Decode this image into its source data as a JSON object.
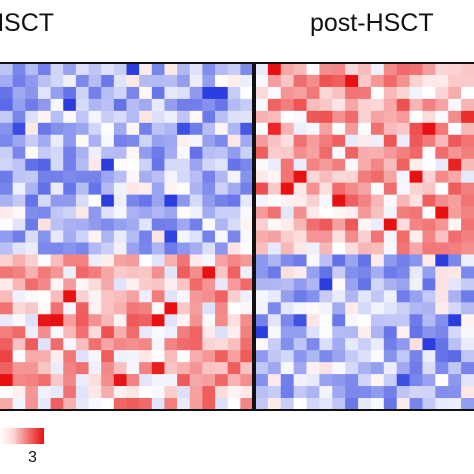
{
  "panels": {
    "left_title": "HSCT",
    "right_title": "post-HSCT"
  },
  "legend": {
    "max_label": "3"
  },
  "colors": {
    "high": "#e81010",
    "mid": "#ffffff",
    "low": "#2a3ee0",
    "border": "#111111"
  },
  "chart_data": {
    "type": "heatmap",
    "panels": [
      "HSCT",
      "post-HSCT"
    ],
    "rows": 29,
    "columns_per_panel": [
      20,
      17
    ],
    "row_groups": [
      {
        "rows": "1-16",
        "HSCT": "mostly low (blue)",
        "post-HSCT": "mostly high (red)"
      },
      {
        "rows": "17-29",
        "HSCT": "mostly high (red)",
        "post-HSCT": "mostly low (blue)"
      }
    ],
    "color_scale": {
      "max": 3,
      "max_color": "#e81010",
      "mid_color": "#ffffff",
      "min_color": "#2a3ee0"
    }
  }
}
